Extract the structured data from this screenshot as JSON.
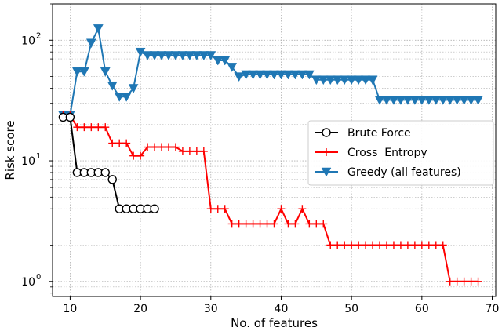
{
  "chart_data": {
    "type": "line",
    "xlabel": "No. of features",
    "ylabel": "Risk score",
    "xlim": [
      7.5,
      70.5
    ],
    "ylim": [
      0.75,
      200
    ],
    "yscale": "log",
    "xticks": [
      10,
      20,
      30,
      40,
      50,
      60,
      70
    ],
    "yticks": [
      1,
      10,
      100
    ],
    "ytick_labels": [
      [
        "10",
        "0"
      ],
      [
        "10",
        "1"
      ],
      [
        "10",
        "2"
      ]
    ],
    "grid": "dotted, major and minor",
    "legend_position": "center-right",
    "series": [
      {
        "name": "Brute Force",
        "color": "#000000",
        "marker": "circle-open",
        "points": [
          [
            9,
            23
          ],
          [
            10,
            23
          ],
          [
            11,
            8
          ],
          [
            12,
            8
          ],
          [
            13,
            8
          ],
          [
            14,
            8
          ],
          [
            15,
            8
          ],
          [
            16,
            7
          ],
          [
            17,
            4
          ],
          [
            18,
            4
          ],
          [
            19,
            4
          ],
          [
            20,
            4
          ],
          [
            21,
            4
          ],
          [
            22,
            4
          ]
        ]
      },
      {
        "name": "Cross  Entropy",
        "color": "#ff0000",
        "marker": "plus",
        "points": [
          [
            9,
            24
          ],
          [
            10,
            24
          ],
          [
            11,
            19
          ],
          [
            12,
            19
          ],
          [
            13,
            19
          ],
          [
            14,
            19
          ],
          [
            15,
            19
          ],
          [
            16,
            14
          ],
          [
            17,
            14
          ],
          [
            18,
            14
          ],
          [
            19,
            11
          ],
          [
            20,
            11
          ],
          [
            21,
            13
          ],
          [
            22,
            13
          ],
          [
            23,
            13
          ],
          [
            24,
            13
          ],
          [
            25,
            13
          ],
          [
            26,
            12
          ],
          [
            27,
            12
          ],
          [
            28,
            12
          ],
          [
            29,
            12
          ],
          [
            30,
            4
          ],
          [
            31,
            4
          ],
          [
            32,
            4
          ],
          [
            33,
            3
          ],
          [
            34,
            3
          ],
          [
            35,
            3
          ],
          [
            36,
            3
          ],
          [
            37,
            3
          ],
          [
            38,
            3
          ],
          [
            39,
            3
          ],
          [
            40,
            4
          ],
          [
            41,
            3
          ],
          [
            42,
            3
          ],
          [
            43,
            4
          ],
          [
            44,
            3
          ],
          [
            45,
            3
          ],
          [
            46,
            3
          ],
          [
            47,
            2
          ],
          [
            48,
            2
          ],
          [
            49,
            2
          ],
          [
            50,
            2
          ],
          [
            51,
            2
          ],
          [
            52,
            2
          ],
          [
            53,
            2
          ],
          [
            54,
            2
          ],
          [
            55,
            2
          ],
          [
            56,
            2
          ],
          [
            57,
            2
          ],
          [
            58,
            2
          ],
          [
            59,
            2
          ],
          [
            60,
            2
          ],
          [
            61,
            2
          ],
          [
            62,
            2
          ],
          [
            63,
            2
          ],
          [
            64,
            1
          ],
          [
            65,
            1
          ],
          [
            66,
            1
          ],
          [
            67,
            1
          ],
          [
            68,
            1
          ]
        ]
      },
      {
        "name": "Greedy (all features)",
        "color": "#1f77b4",
        "marker": "triangle-down",
        "points": [
          [
            9,
            24
          ],
          [
            10,
            24
          ],
          [
            11,
            55
          ],
          [
            12,
            55
          ],
          [
            13,
            95
          ],
          [
            14,
            125
          ],
          [
            15,
            55
          ],
          [
            16,
            42
          ],
          [
            17,
            34
          ],
          [
            18,
            34
          ],
          [
            19,
            40
          ],
          [
            20,
            80
          ],
          [
            21,
            75
          ],
          [
            22,
            75
          ],
          [
            23,
            75
          ],
          [
            24,
            75
          ],
          [
            25,
            75
          ],
          [
            26,
            75
          ],
          [
            27,
            75
          ],
          [
            28,
            75
          ],
          [
            29,
            75
          ],
          [
            30,
            75
          ],
          [
            31,
            68
          ],
          [
            32,
            68
          ],
          [
            33,
            60
          ],
          [
            34,
            50
          ],
          [
            35,
            52
          ],
          [
            36,
            52
          ],
          [
            37,
            52
          ],
          [
            38,
            52
          ],
          [
            39,
            52
          ],
          [
            40,
            52
          ],
          [
            41,
            52
          ],
          [
            42,
            52
          ],
          [
            43,
            52
          ],
          [
            44,
            52
          ],
          [
            45,
            47
          ],
          [
            46,
            47
          ],
          [
            47,
            47
          ],
          [
            48,
            47
          ],
          [
            49,
            47
          ],
          [
            50,
            47
          ],
          [
            51,
            47
          ],
          [
            52,
            47
          ],
          [
            53,
            47
          ],
          [
            54,
            32
          ],
          [
            55,
            32
          ],
          [
            56,
            32
          ],
          [
            57,
            32
          ],
          [
            58,
            32
          ],
          [
            59,
            32
          ],
          [
            60,
            32
          ],
          [
            61,
            32
          ],
          [
            62,
            32
          ],
          [
            63,
            32
          ],
          [
            64,
            32
          ],
          [
            65,
            32
          ],
          [
            66,
            32
          ],
          [
            67,
            32
          ],
          [
            68,
            32
          ]
        ]
      }
    ]
  }
}
